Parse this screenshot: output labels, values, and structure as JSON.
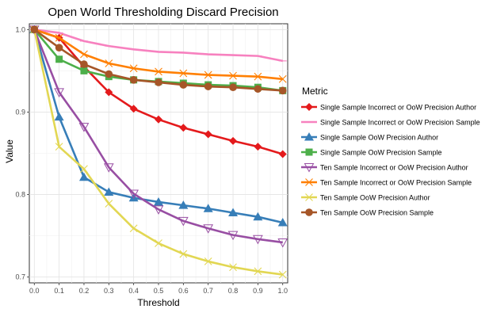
{
  "chart_data": {
    "type": "line",
    "title": "Open World Thresholding Discard Precision",
    "xlabel": "Threshold",
    "ylabel": "Value",
    "x": [
      0.0,
      0.1,
      0.2,
      0.3,
      0.4,
      0.5,
      0.6,
      0.7,
      0.8,
      0.9,
      1.0
    ],
    "xticks": [
      "0.0",
      "0.1",
      "0.2",
      "0.3",
      "0.4",
      "0.5",
      "0.6",
      "0.7",
      "0.8",
      "0.9",
      "1.0"
    ],
    "yticks": [
      "0.7",
      "0.8",
      "0.9",
      "1.0"
    ],
    "xlim": [
      -0.02,
      1.02
    ],
    "ylim": [
      0.693,
      1.007
    ],
    "grid": true,
    "legend": {
      "title": "Metric",
      "position": "right"
    },
    "series": [
      {
        "name": "Single Sample Incorrect or OoW Precision Author",
        "color": "#e41a1c",
        "marker": "diamond",
        "values": [
          1.0,
          0.99,
          0.955,
          0.924,
          0.904,
          0.891,
          0.881,
          0.873,
          0.865,
          0.858,
          0.849
        ]
      },
      {
        "name": "Single Sample Incorrect or OoW Precision Sample",
        "color": "#f781bf",
        "marker": "dash",
        "values": [
          1.0,
          0.996,
          0.986,
          0.98,
          0.976,
          0.973,
          0.972,
          0.97,
          0.969,
          0.968,
          0.962
        ]
      },
      {
        "name": "Single Sample OoW Precision Author",
        "color": "#377eb8",
        "marker": "triangle",
        "values": [
          1.0,
          0.894,
          0.821,
          0.803,
          0.796,
          0.791,
          0.787,
          0.783,
          0.778,
          0.773,
          0.766
        ]
      },
      {
        "name": "Single Sample OoW Precision Sample",
        "color": "#4daf4a",
        "marker": "square",
        "values": [
          1.0,
          0.964,
          0.95,
          0.943,
          0.939,
          0.937,
          0.935,
          0.933,
          0.932,
          0.93,
          0.926
        ]
      },
      {
        "name": "Ten Sample Incorrect or OoW Precision Author",
        "color": "#984ea3",
        "marker": "triangle-down",
        "values": [
          1.0,
          0.924,
          0.882,
          0.833,
          0.801,
          0.782,
          0.768,
          0.759,
          0.751,
          0.746,
          0.742
        ]
      },
      {
        "name": "Ten Sample Incorrect or OoW Precision Sample",
        "color": "#ff7f00",
        "marker": "x",
        "values": [
          1.0,
          0.99,
          0.97,
          0.959,
          0.953,
          0.949,
          0.947,
          0.945,
          0.944,
          0.943,
          0.94
        ]
      },
      {
        "name": "Ten Sample OoW Precision Author",
        "color": "#e2d753",
        "marker": "x",
        "values": [
          1.0,
          0.858,
          0.831,
          0.789,
          0.759,
          0.741,
          0.728,
          0.719,
          0.712,
          0.707,
          0.703
        ]
      },
      {
        "name": "Ten Sample OoW Precision Sample",
        "color": "#a65628",
        "marker": "circle",
        "values": [
          1.0,
          0.978,
          0.958,
          0.946,
          0.939,
          0.936,
          0.933,
          0.931,
          0.93,
          0.928,
          0.926
        ]
      }
    ]
  }
}
